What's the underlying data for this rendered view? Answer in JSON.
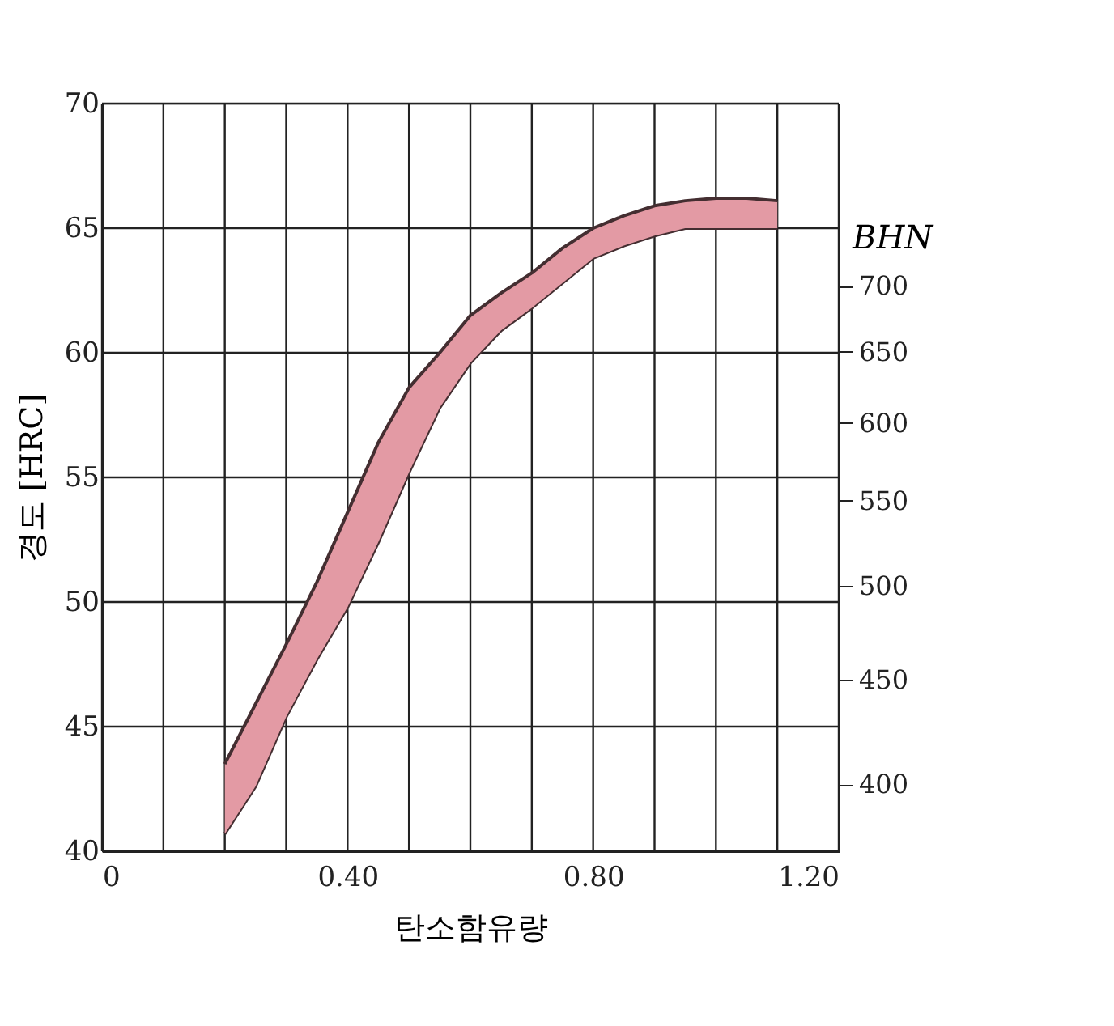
{
  "chart_data": {
    "type": "area",
    "xlabel": "탄소함유량",
    "ylabel": "경도 [HRC]",
    "y2label": "BHN",
    "xlim": [
      0,
      1.2
    ],
    "xticks": [
      0,
      {
        "value": 0.1,
        "label": null
      },
      {
        "value": 0.2,
        "label": null
      },
      {
        "value": 0.3,
        "label": null
      },
      {
        "value": 0.4,
        "label": "0.40"
      },
      {
        "value": 0.5,
        "label": null
      },
      {
        "value": 0.6,
        "label": null
      },
      {
        "value": 0.7,
        "label": null
      },
      {
        "value": 0.8,
        "label": "0.80"
      },
      {
        "value": 0.9,
        "label": null
      },
      {
        "value": 1.0,
        "label": null
      },
      {
        "value": 1.1,
        "label": null
      },
      {
        "value": 1.2,
        "label": "1.20"
      }
    ],
    "ylim": [
      40,
      70
    ],
    "yticks": [
      40,
      45,
      50,
      55,
      60,
      65,
      70
    ],
    "log": "y2",
    "y2lim": [
      371,
      859
    ],
    "y2ticks": [
      400,
      450,
      500,
      550,
      600,
      650,
      700
    ],
    "grid": true,
    "line_style": "solid",
    "marker": "none",
    "series": [
      {
        "type": "line",
        "color": "#442e31",
        "x": [
          0.2,
          0.25,
          0.3,
          0.35,
          0.4,
          0.45,
          0.5,
          0.55,
          0.6,
          0.65,
          0.7,
          0.75,
          0.8,
          0.85,
          0.9,
          0.95,
          1.0,
          1.05,
          1.1
        ],
        "values": [
          40.7,
          42.6,
          45.4,
          47.7,
          49.8,
          52.4,
          55.2,
          57.8,
          59.6,
          60.9,
          61.8,
          62.8,
          63.8,
          64.3,
          64.7,
          65.0,
          65.0,
          65.0,
          65.0
        ]
      },
      {
        "color": "#e39aa4",
        "x": [
          0.2,
          0.25,
          0.3,
          0.35,
          0.4,
          0.45,
          0.5,
          0.55,
          0.6,
          0.65,
          0.7,
          0.75,
          0.8,
          0.85,
          0.9,
          0.95,
          1.0,
          1.05,
          1.1
        ],
        "values": [
          43.5,
          45.9,
          48.3,
          50.8,
          53.6,
          56.4,
          58.6,
          60.0,
          61.5,
          62.4,
          63.2,
          64.2,
          65.0,
          65.5,
          65.9,
          66.1,
          66.2,
          66.2,
          66.1
        ]
      }
    ]
  }
}
